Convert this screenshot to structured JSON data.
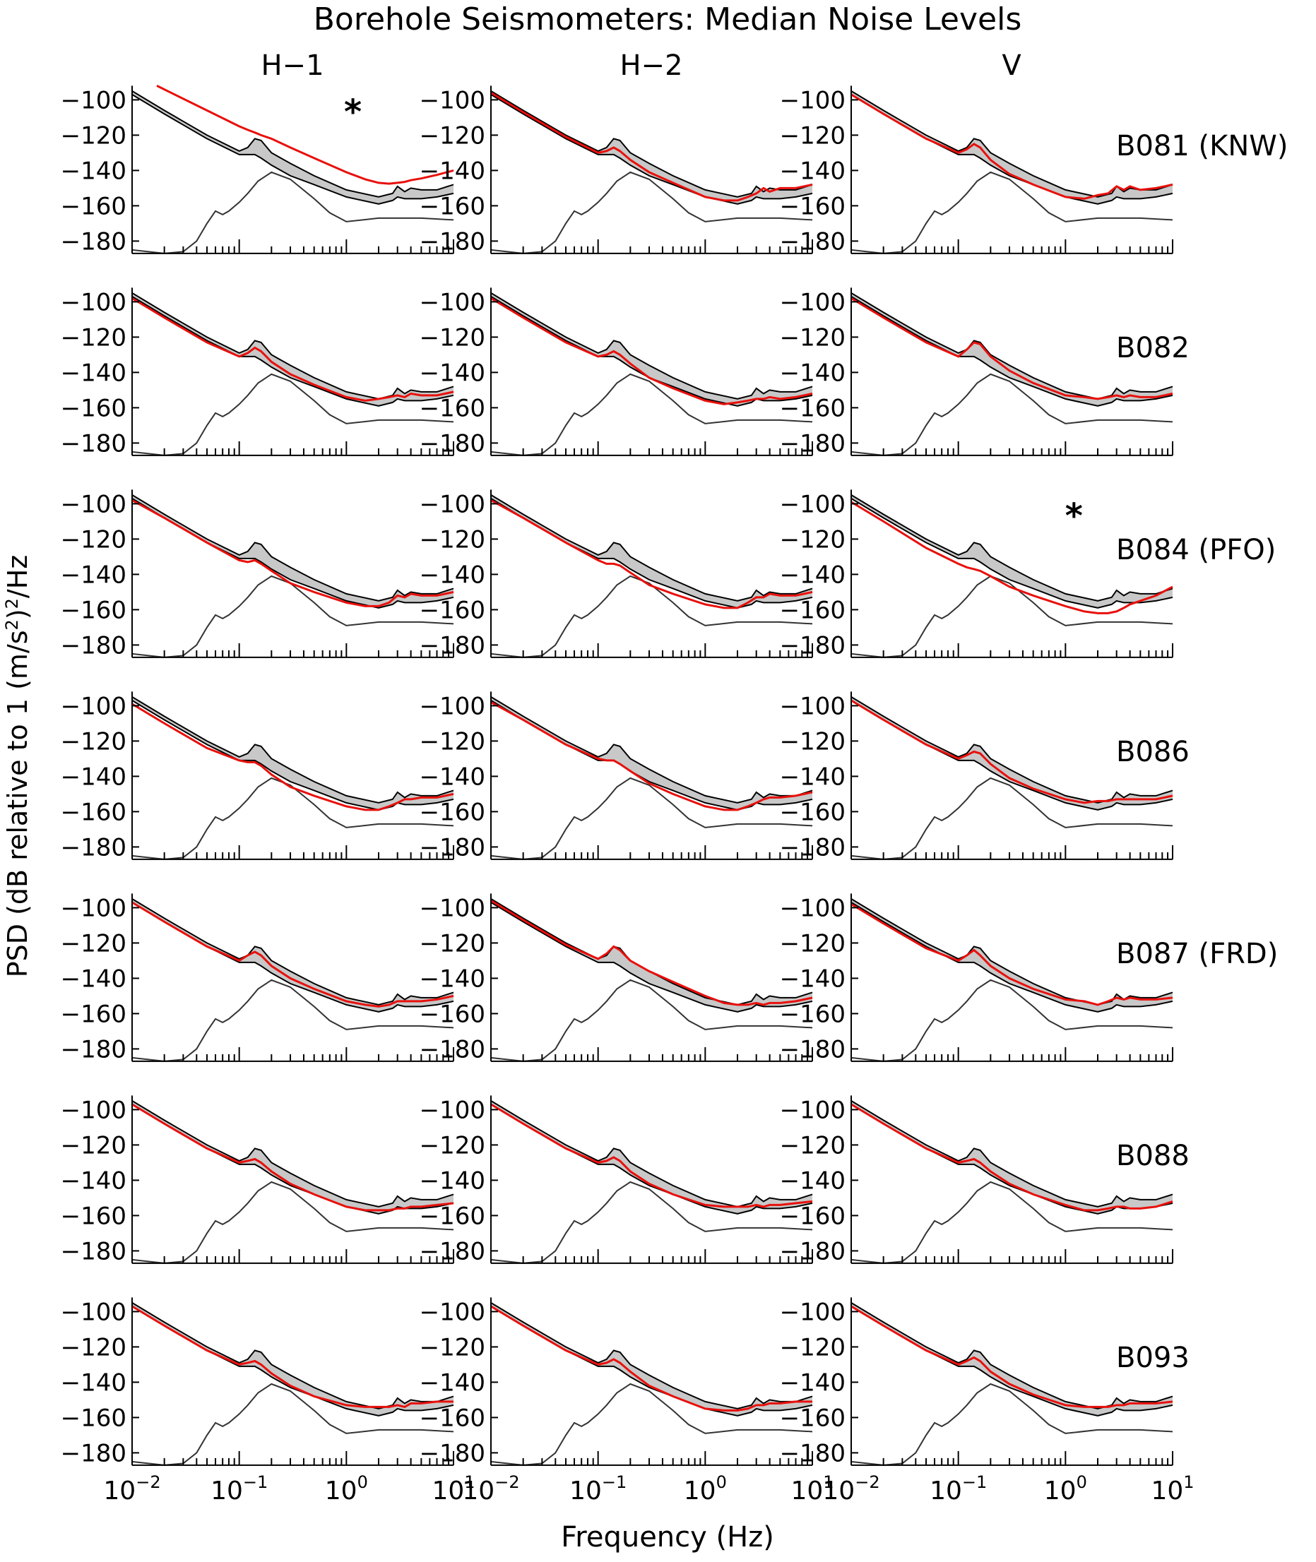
{
  "chart_data": {
    "type": "line",
    "title": "Borehole Seismometers: Median Noise Levels",
    "xlabel": "Frequency (Hz)",
    "ylabel_parts": {
      "before": "PSD (dB relative to 1 (m/s",
      "sup1": "2",
      "mid": ")",
      "sup2": "2",
      "after": "/Hz"
    },
    "x_scale": "log",
    "xlim": [
      0.01,
      10
    ],
    "ylim": [
      -187,
      -92
    ],
    "x_tick_labels": [
      {
        "value": 0.01,
        "base": "10",
        "exp": "−2"
      },
      {
        "value": 0.1,
        "base": "10",
        "exp": "−1"
      },
      {
        "value": 1,
        "base": "10",
        "exp": "0"
      },
      {
        "value": 10,
        "base": "10",
        "exp": "1"
      }
    ],
    "y_ticks": [
      -100,
      -120,
      -140,
      -160,
      -180
    ],
    "y_tick_labels": [
      "−100",
      "−120",
      "−140",
      "−160",
      "−180"
    ],
    "columns": [
      "H−1",
      "H−2",
      "V"
    ],
    "stations": [
      "B081 (KNW)",
      "B082",
      "B084 (PFO)",
      "B086",
      "B087 (FRD)",
      "B088",
      "B093"
    ],
    "marker": "*",
    "marked_panels": [
      {
        "row": 0,
        "col": 0,
        "x": 1.15,
        "y": -103
      },
      {
        "row": 2,
        "col": 2,
        "x": 1.2,
        "y": -103
      }
    ],
    "colors": {
      "band_fill": "#c8c8c8",
      "band_edge": "#000000",
      "reference": "#333333",
      "median": "#e8100c"
    },
    "band": {
      "x": [
        0.01,
        0.02,
        0.05,
        0.1,
        0.12,
        0.14,
        0.16,
        0.2,
        0.3,
        0.5,
        1.0,
        2.0,
        2.7,
        3.0,
        3.5,
        4.0,
        5.0,
        7.0,
        10.0
      ],
      "upper": [
        -95,
        -106,
        -120,
        -129,
        -127,
        -122,
        -123,
        -130,
        -136,
        -143,
        -151,
        -155,
        -153,
        -149,
        -152,
        -150,
        -151,
        -151,
        -148
      ],
      "lower": [
        -97,
        -108,
        -122,
        -131,
        -131,
        -131,
        -133,
        -137,
        -143,
        -148,
        -155,
        -159,
        -157,
        -155,
        -156,
        -156,
        -156,
        -155,
        -153
      ]
    },
    "reference_model": {
      "x": [
        0.01,
        0.02,
        0.03,
        0.04,
        0.05,
        0.06,
        0.07,
        0.08,
        0.1,
        0.12,
        0.15,
        0.2,
        0.3,
        0.5,
        0.7,
        1.0,
        2.0,
        5.0,
        10.0
      ],
      "y": [
        -185,
        -187,
        -186,
        -180,
        -170,
        -163,
        -165,
        -163,
        -158,
        -153,
        -146,
        -141,
        -145,
        -156,
        -164,
        -169,
        -167,
        -167,
        -168
      ]
    },
    "median": {
      "x": [
        0.01,
        0.02,
        0.05,
        0.1,
        0.12,
        0.14,
        0.16,
        0.2,
        0.3,
        0.5,
        1.0,
        1.5,
        2.0,
        2.5,
        3.0,
        3.5,
        4.0,
        5.0,
        7.0,
        10.0
      ],
      "series": [
        [
          {
            "name": "B081 (KNW) H−1",
            "x0": 0.017,
            "y": [
              -92,
              -92,
              -106,
              -115,
              -117,
              -118.5,
              -120,
              -122,
              -127,
              -133,
              -141,
              -145,
              -147,
              -147.5,
              -147,
              -146.5,
              -145.5,
              -144.5,
              -142.5,
              -140
            ]
          },
          {
            "name": "B081 (KNW) H−2",
            "y": [
              -96,
              -107,
              -121,
              -130,
              -129,
              -127,
              -129,
              -134,
              -141,
              -147,
              -155,
              -157,
              -157,
              -155,
              -153,
              -150,
              -152,
              -150,
              -150,
              -148
            ]
          },
          {
            "name": "B081 (KNW) V",
            "y": [
              -97,
              -108,
              -122,
              -130,
              -128,
              -125,
              -127,
              -134,
              -142,
              -148,
              -155,
              -156,
              -154,
              -153,
              -149,
              -151,
              -149,
              -151,
              -150,
              -148
            ]
          }
        ],
        [
          {
            "name": "B082 H−1",
            "y": [
              -98,
              -109,
              -123,
              -131,
              -129,
              -126,
              -128,
              -134,
              -141,
              -147,
              -154,
              -156,
              -155,
              -154,
              -153,
              -154,
              -152,
              -153,
              -153,
              -151
            ]
          },
          {
            "name": "B082 H−2",
            "y": [
              -98,
              -109,
              -123,
              -131,
              -130,
              -128,
              -130,
              -135,
              -143,
              -149,
              -156,
              -158,
              -157,
              -156,
              -155,
              -155,
              -154,
              -155,
              -154,
              -152
            ]
          },
          {
            "name": "B082 V",
            "y": [
              -98,
              -109,
              -123,
              -131,
              -127,
              -123,
              -124,
              -131,
              -139,
              -146,
              -153,
              -154,
              -155,
              -154,
              -153,
              -154,
              -153,
              -154,
              -154,
              -152
            ]
          }
        ],
        [
          {
            "name": "B084 (PFO) H−1",
            "y": [
              -98,
              -108,
              -122,
              -132,
              -133,
              -132,
              -134,
              -138,
              -145,
              -150,
              -156,
              -158,
              -158,
              -156,
              -152,
              -153,
              -151,
              -152,
              -152,
              -150
            ]
          },
          {
            "name": "B084 (PFO) H−2",
            "y": [
              -98,
              -108,
              -122,
              -132,
              -134,
              -134,
              -135,
              -139,
              -146,
              -151,
              -157,
              -159,
              -159,
              -156,
              -153,
              -153,
              -151,
              -152,
              -152,
              -150
            ]
          },
          {
            "name": "B084 (PFO) V",
            "y": [
              -99,
              -110,
              -125,
              -134,
              -136,
              -137,
              -138,
              -141,
              -147,
              -152,
              -158,
              -161,
              -162,
              -162,
              -161,
              -159,
              -157,
              -155,
              -152,
              -147
            ]
          }
        ],
        [
          {
            "name": "B086 H−1",
            "y": [
              -99,
              -110,
              -124,
              -131,
              -132,
              -132,
              -134,
              -139,
              -146,
              -151,
              -157,
              -159,
              -159,
              -157,
              -155,
              -153,
              -153,
              -152,
              -152,
              -150
            ]
          },
          {
            "name": "B086 H−2",
            "y": [
              -98,
              -108,
              -122,
              -130,
              -131,
              -131,
              -133,
              -137,
              -144,
              -150,
              -157,
              -159,
              -159,
              -157,
              -155,
              -153,
              -152,
              -152,
              -151,
              -149
            ]
          },
          {
            "name": "B086 V",
            "y": [
              -97,
              -108,
              -122,
              -130,
              -128,
              -126,
              -127,
              -133,
              -141,
              -147,
              -153,
              -155,
              -154,
              -154,
              -153,
              -153,
              -153,
              -153,
              -153,
              -151
            ]
          }
        ],
        [
          {
            "name": "B087 (FRD) H−1",
            "y": [
              -97,
              -108,
              -122,
              -130,
              -127,
              -125,
              -127,
              -133,
              -140,
              -146,
              -153,
              -155,
              -156,
              -155,
              -153,
              -153,
              -153,
              -153,
              -152,
              -150
            ]
          },
          {
            "name": "B087 (FRD) H−2",
            "y": [
              -96,
              -107,
              -121,
              -129,
              -126,
              -122,
              -124,
              -130,
              -136,
              -142,
              -150,
              -154,
              -155,
              -155,
              -154,
              -155,
              -154,
              -154,
              -153,
              -151
            ]
          },
          {
            "name": "B087 (FRD) V",
            "y": [
              -98,
              -109,
              -123,
              -130,
              -127,
              -124,
              -127,
              -133,
              -140,
              -146,
              -152,
              -153,
              -155,
              -153,
              -151,
              -152,
              -151,
              -152,
              -152,
              -151
            ]
          }
        ],
        [
          {
            "name": "B088 H−1",
            "y": [
              -97,
              -108,
              -122,
              -130,
              -129,
              -128,
              -130,
              -135,
              -142,
              -148,
              -155,
              -157,
              -157,
              -157,
              -156,
              -156,
              -155,
              -155,
              -154,
              -153
            ]
          },
          {
            "name": "B088 H−2",
            "y": [
              -97,
              -108,
              -122,
              -130,
              -129,
              -127,
              -129,
              -135,
              -142,
              -148,
              -154,
              -155,
              -155,
              -155,
              -154,
              -155,
              -154,
              -154,
              -153,
              -152
            ]
          },
          {
            "name": "B088 V",
            "y": [
              -97,
              -108,
              -122,
              -130,
              -129,
              -128,
              -130,
              -135,
              -142,
              -148,
              -154,
              -157,
              -157,
              -156,
              -155,
              -155,
              -156,
              -156,
              -155,
              -152
            ]
          }
        ],
        [
          {
            "name": "B093 H−1",
            "y": [
              -97,
              -108,
              -122,
              -130,
              -129,
              -128,
              -130,
              -135,
              -142,
              -148,
              -153,
              -154,
              -154,
              -154,
              -153,
              -154,
              -152,
              -152,
              -151,
              -151
            ]
          },
          {
            "name": "B093 H−2",
            "y": [
              -97,
              -108,
              -122,
              -130,
              -129,
              -127,
              -129,
              -134,
              -142,
              -148,
              -155,
              -156,
              -156,
              -155,
              -153,
              -153,
              -152,
              -152,
              -151,
              -151
            ]
          },
          {
            "name": "B093 V",
            "y": [
              -97,
              -108,
              -122,
              -130,
              -128,
              -126,
              -128,
              -134,
              -141,
              -147,
              -153,
              -154,
              -154,
              -154,
              -153,
              -153,
              -152,
              -152,
              -152,
              -151
            ]
          }
        ]
      ]
    }
  }
}
